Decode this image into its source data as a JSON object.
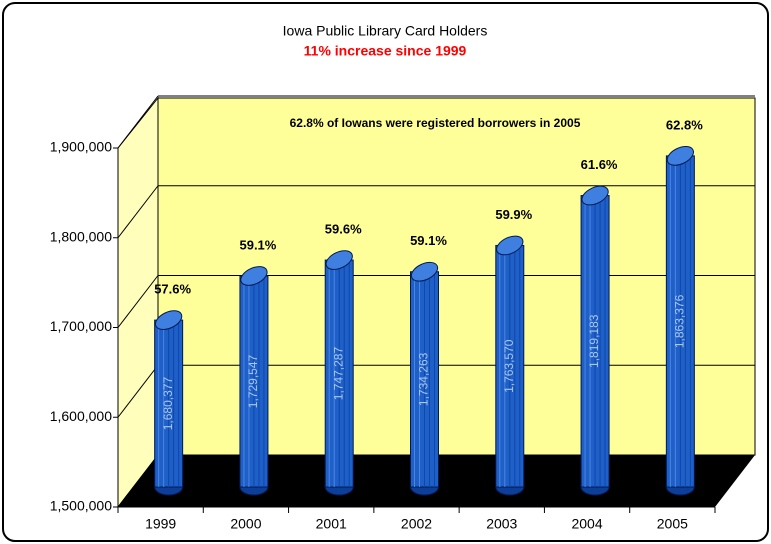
{
  "chart_data": {
    "type": "bar3d",
    "title": "Iowa Public Library Card Holders",
    "subtitle": "11% increase since 1999",
    "annotation": "62.8% of Iowans were registered borrowers in 2005",
    "categories": [
      "1999",
      "2000",
      "2001",
      "2002",
      "2003",
      "2004",
      "2005"
    ],
    "values": [
      1680377,
      1729547,
      1747287,
      1734263,
      1763570,
      1819183,
      1863376
    ],
    "value_labels": [
      "1,680,377",
      "1,729,547",
      "1,747,287",
      "1,734,263",
      "1,763,570",
      "1,819,183",
      "1,863,376"
    ],
    "percent_labels": [
      "57.6%",
      "59.1%",
      "59.6%",
      "59.1%",
      "59.9%",
      "61.6%",
      "62.8%"
    ],
    "color": "#1f5fc8",
    "ylim": [
      1500000,
      1900000
    ],
    "yticks": [
      {
        "value": 1500000,
        "label": "1,500,000"
      },
      {
        "value": 1600000,
        "label": "1,600,000"
      },
      {
        "value": 1700000,
        "label": "1,700,000"
      },
      {
        "value": 1800000,
        "label": "1,800,000"
      },
      {
        "value": 1900000,
        "label": "1,900,000"
      }
    ],
    "grid": true
  }
}
